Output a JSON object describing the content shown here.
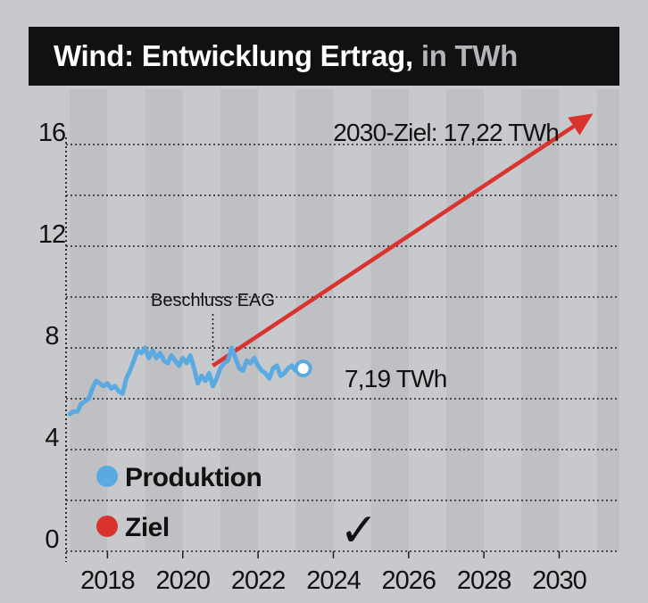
{
  "chart_data": {
    "type": "line",
    "title": "Wind: Entwicklung Ertrag,",
    "title_unit": "in TWh",
    "ylim": [
      0,
      16
    ],
    "yticks": [
      "16",
      "12",
      "8",
      "4",
      "0"
    ],
    "ytick_values": [
      16,
      12,
      8,
      4,
      0
    ],
    "xlim": [
      2016.9,
      2031.6
    ],
    "xtick_labels": [
      "2018",
      "2020",
      "2022",
      "2024",
      "2026",
      "2028",
      "2030"
    ],
    "xtick_values": [
      2018,
      2020,
      2022,
      2024,
      2026,
      2028,
      2030
    ],
    "series": [
      {
        "name": "Produktion",
        "color": "#5aa9e0",
        "x": [
          2017.0,
          2017.1,
          2017.2,
          2017.3,
          2017.4,
          2017.5,
          2017.6,
          2017.7,
          2017.8,
          2017.9,
          2018.0,
          2018.1,
          2018.2,
          2018.3,
          2018.4,
          2018.5,
          2018.6,
          2018.7,
          2018.8,
          2018.9,
          2019.0,
          2019.1,
          2019.2,
          2019.3,
          2019.4,
          2019.5,
          2019.6,
          2019.7,
          2019.8,
          2019.9,
          2020.0,
          2020.1,
          2020.2,
          2020.3,
          2020.4,
          2020.5,
          2020.6,
          2020.7,
          2020.8,
          2020.9,
          2021.0,
          2021.1,
          2021.2,
          2021.3,
          2021.4,
          2021.5,
          2021.6,
          2021.7,
          2021.8,
          2021.9,
          2022.0,
          2022.1,
          2022.2,
          2022.3,
          2022.4,
          2022.5,
          2022.6,
          2022.7,
          2022.8,
          2022.9,
          2023.0,
          2023.1,
          2023.2
        ],
        "values": [
          5.4,
          5.5,
          5.5,
          5.8,
          5.9,
          6.0,
          6.4,
          6.7,
          6.6,
          6.5,
          6.6,
          6.4,
          6.5,
          6.3,
          6.2,
          6.8,
          7.1,
          7.5,
          7.9,
          7.8,
          8.0,
          7.6,
          7.9,
          7.6,
          7.8,
          7.5,
          7.4,
          7.7,
          7.5,
          7.3,
          7.6,
          7.4,
          7.7,
          7.2,
          6.6,
          6.9,
          6.7,
          7.0,
          6.5,
          6.8,
          7.2,
          7.4,
          7.5,
          8.0,
          7.6,
          7.2,
          7.1,
          7.5,
          7.4,
          7.6,
          7.3,
          7.1,
          7.0,
          6.8,
          7.2,
          7.3,
          6.9,
          7.0,
          7.2,
          7.3,
          7.1,
          7.2,
          7.19
        ]
      },
      {
        "name": "Ziel",
        "color": "#d9332e",
        "x": [
          2020.8,
          2030.9
        ],
        "values": [
          7.3,
          17.22
        ]
      }
    ],
    "annotations": {
      "eag": {
        "label": "Beschluss EAG",
        "x": 2020.8
      },
      "target": {
        "label": "2030-Ziel: 17,22 TWh",
        "value": 17.22
      },
      "current": {
        "label": "7,19 TWh",
        "x": 2023.2,
        "value": 7.19
      }
    },
    "legend": [
      {
        "label": "Produktion",
        "color": "#5aa9e0"
      },
      {
        "label": "Ziel",
        "color": "#d9332e"
      }
    ],
    "checkmark": "✓"
  }
}
